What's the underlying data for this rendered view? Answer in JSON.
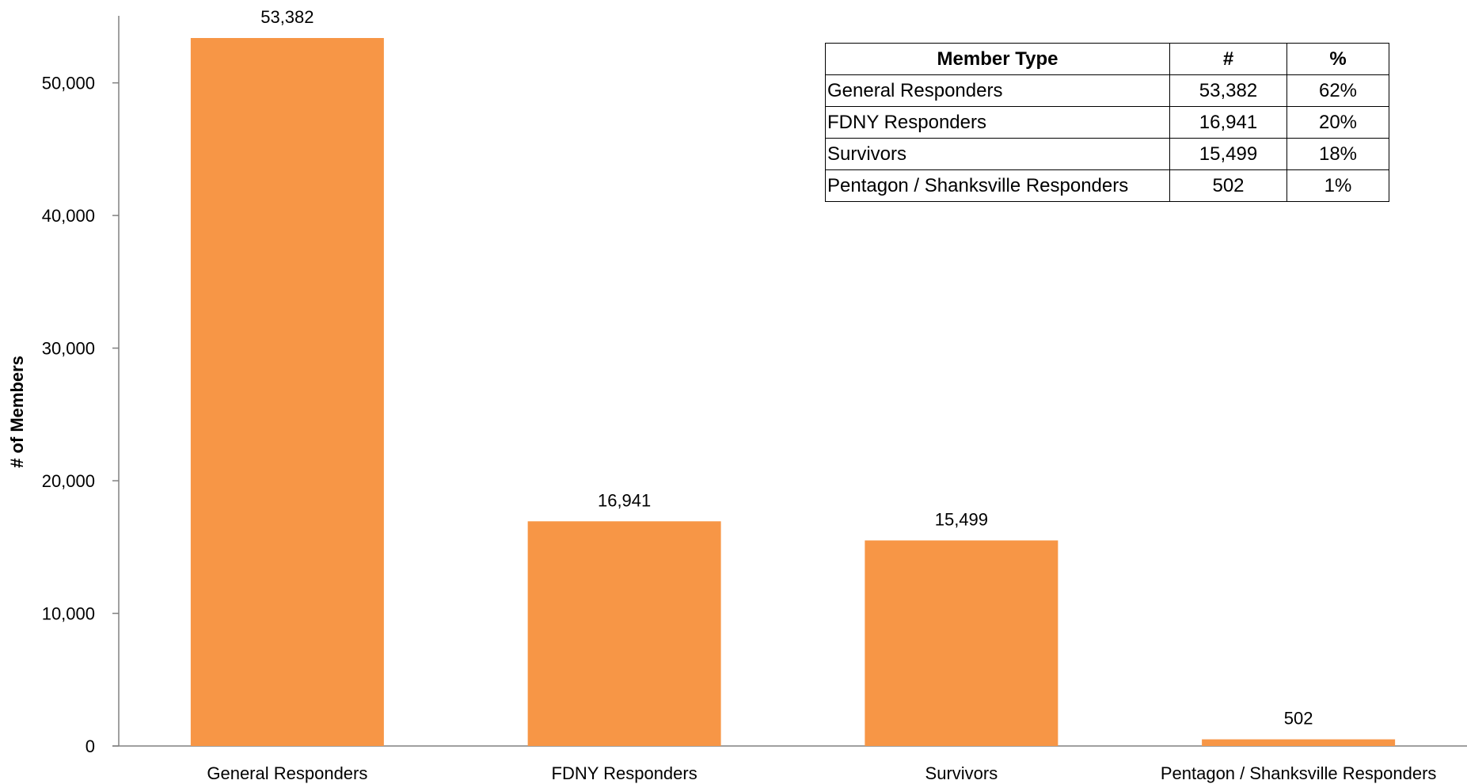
{
  "chart_data": {
    "type": "bar",
    "title": "",
    "xlabel": "",
    "ylabel": "# of Members",
    "categories": [
      "General Responders",
      "FDNY Responders",
      "Survivors",
      "Pentagon / Shanksville Responders"
    ],
    "values": [
      53382,
      16941,
      15499,
      502
    ],
    "value_labels": [
      "53,382",
      "16,941",
      "15,499",
      "502"
    ],
    "ylim": [
      0,
      55000
    ],
    "yticks": [
      0,
      10000,
      20000,
      30000,
      40000,
      50000
    ],
    "ytick_labels": [
      "0",
      "10,000",
      "20,000",
      "30,000",
      "40,000",
      "50,000"
    ],
    "bar_color": "#F79646",
    "grid": false,
    "legend": "none"
  },
  "table": {
    "headers": [
      "Member Type",
      "#",
      "%"
    ],
    "rows": [
      {
        "type": "General Responders",
        "count": "53,382",
        "pct": "62%"
      },
      {
        "type": "FDNY Responders",
        "count": "16,941",
        "pct": "20%"
      },
      {
        "type": "Survivors",
        "count": "15,499",
        "pct": "18%"
      },
      {
        "type": "Pentagon / Shanksville Responders",
        "count": "502",
        "pct": "1%"
      }
    ]
  }
}
